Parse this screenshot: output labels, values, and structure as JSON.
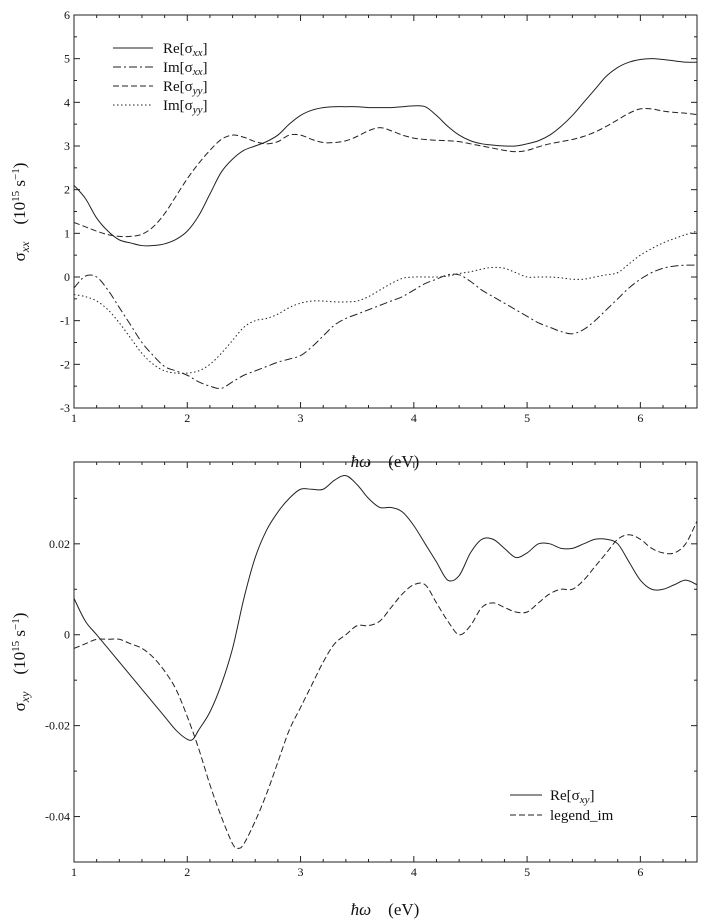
{
  "chart_data": [
    {
      "type": "line",
      "xlabel_parts": [
        "ħω",
        "(eV)"
      ],
      "ylabel_parts": [
        "σ",
        "xx",
        "(10",
        "15",
        " s",
        "−1",
        ")"
      ],
      "xlim": [
        1,
        6.5
      ],
      "ylim": [
        -3,
        6
      ],
      "xticks": [
        1,
        2,
        3,
        4,
        5,
        6
      ],
      "yticks": [
        -3,
        -2,
        -1,
        0,
        1,
        2,
        3,
        4,
        5,
        6
      ],
      "xtick_labels": [
        "1",
        "2",
        "3",
        "4",
        "5",
        "6"
      ],
      "ytick_labels": [
        "-3",
        "-2",
        "-1",
        "0",
        "1",
        "2",
        "3",
        "4",
        "5",
        "6"
      ],
      "grid": false,
      "legend_position": "top-left",
      "series": [
        {
          "name_parts": [
            "Re",
            "σ",
            "xx"
          ],
          "dash": "solid",
          "x": [
            1.0,
            1.1,
            1.2,
            1.3,
            1.4,
            1.5,
            1.6,
            1.7,
            1.8,
            1.9,
            2.0,
            2.1,
            2.2,
            2.3,
            2.4,
            2.5,
            2.6,
            2.7,
            2.8,
            2.9,
            3.0,
            3.1,
            3.2,
            3.3,
            3.4,
            3.5,
            3.6,
            3.7,
            3.8,
            3.9,
            4.0,
            4.1,
            4.2,
            4.3,
            4.4,
            4.5,
            4.6,
            4.7,
            4.8,
            4.9,
            5.0,
            5.1,
            5.2,
            5.3,
            5.4,
            5.5,
            5.6,
            5.7,
            5.8,
            5.9,
            6.0,
            6.1,
            6.2,
            6.3,
            6.4,
            6.5
          ],
          "y": [
            2.1,
            1.8,
            1.35,
            1.05,
            0.85,
            0.78,
            0.72,
            0.72,
            0.76,
            0.86,
            1.05,
            1.4,
            1.9,
            2.4,
            2.7,
            2.9,
            3.0,
            3.1,
            3.25,
            3.5,
            3.7,
            3.82,
            3.88,
            3.9,
            3.9,
            3.9,
            3.88,
            3.88,
            3.88,
            3.9,
            3.92,
            3.9,
            3.7,
            3.45,
            3.25,
            3.12,
            3.05,
            3.02,
            3.0,
            3.0,
            3.05,
            3.12,
            3.25,
            3.45,
            3.7,
            4.0,
            4.3,
            4.6,
            4.8,
            4.92,
            4.98,
            5.0,
            4.98,
            4.95,
            4.92,
            4.92
          ]
        },
        {
          "name_parts": [
            "Im",
            "σ",
            "xx"
          ],
          "dash": "dashdot",
          "x": [
            1.0,
            1.1,
            1.2,
            1.3,
            1.4,
            1.5,
            1.6,
            1.7,
            1.8,
            1.9,
            2.0,
            2.1,
            2.2,
            2.3,
            2.4,
            2.5,
            2.6,
            2.7,
            2.8,
            2.9,
            3.0,
            3.1,
            3.2,
            3.3,
            3.4,
            3.5,
            3.6,
            3.7,
            3.8,
            3.9,
            4.0,
            4.1,
            4.2,
            4.3,
            4.4,
            4.5,
            4.6,
            4.7,
            4.8,
            4.9,
            5.0,
            5.1,
            5.2,
            5.3,
            5.4,
            5.5,
            5.6,
            5.7,
            5.8,
            5.9,
            6.0,
            6.1,
            6.2,
            6.3,
            6.4,
            6.5
          ],
          "y": [
            -0.25,
            0.02,
            0.0,
            -0.3,
            -0.7,
            -1.1,
            -1.5,
            -1.8,
            -2.05,
            -2.15,
            -2.25,
            -2.4,
            -2.5,
            -2.55,
            -2.4,
            -2.25,
            -2.15,
            -2.05,
            -1.95,
            -1.88,
            -1.8,
            -1.6,
            -1.35,
            -1.1,
            -0.95,
            -0.85,
            -0.75,
            -0.65,
            -0.55,
            -0.45,
            -0.3,
            -0.15,
            -0.05,
            0.05,
            0.05,
            -0.1,
            -0.3,
            -0.45,
            -0.6,
            -0.75,
            -0.9,
            -1.05,
            -1.15,
            -1.25,
            -1.3,
            -1.2,
            -1.0,
            -0.75,
            -0.5,
            -0.25,
            -0.05,
            0.1,
            0.2,
            0.25,
            0.27,
            0.27
          ]
        },
        {
          "name_parts": [
            "Re",
            "σ",
            "yy"
          ],
          "dash": "dashed",
          "x": [
            1.0,
            1.1,
            1.2,
            1.3,
            1.4,
            1.5,
            1.6,
            1.7,
            1.8,
            1.9,
            2.0,
            2.1,
            2.2,
            2.3,
            2.4,
            2.5,
            2.6,
            2.7,
            2.8,
            2.9,
            3.0,
            3.1,
            3.2,
            3.3,
            3.4,
            3.5,
            3.6,
            3.7,
            3.8,
            3.9,
            4.0,
            4.1,
            4.2,
            4.3,
            4.4,
            4.5,
            4.6,
            4.7,
            4.8,
            4.9,
            5.0,
            5.1,
            5.2,
            5.3,
            5.4,
            5.5,
            5.6,
            5.7,
            5.8,
            5.9,
            6.0,
            6.1,
            6.2,
            6.3,
            6.4,
            6.5
          ],
          "y": [
            1.25,
            1.15,
            1.05,
            0.97,
            0.93,
            0.93,
            0.98,
            1.15,
            1.45,
            1.85,
            2.25,
            2.6,
            2.9,
            3.15,
            3.25,
            3.2,
            3.1,
            3.05,
            3.1,
            3.25,
            3.25,
            3.15,
            3.08,
            3.08,
            3.12,
            3.22,
            3.35,
            3.42,
            3.35,
            3.25,
            3.18,
            3.15,
            3.13,
            3.12,
            3.1,
            3.05,
            3.0,
            2.95,
            2.9,
            2.87,
            2.9,
            2.98,
            3.05,
            3.1,
            3.15,
            3.22,
            3.32,
            3.45,
            3.6,
            3.75,
            3.85,
            3.85,
            3.8,
            3.77,
            3.75,
            3.72
          ]
        },
        {
          "name_parts": [
            "Im",
            "σ",
            "yy"
          ],
          "dash": "dotted",
          "x": [
            1.0,
            1.1,
            1.2,
            1.3,
            1.4,
            1.5,
            1.6,
            1.7,
            1.8,
            1.9,
            2.0,
            2.1,
            2.2,
            2.3,
            2.4,
            2.5,
            2.6,
            2.7,
            2.8,
            2.9,
            3.0,
            3.1,
            3.2,
            3.3,
            3.4,
            3.5,
            3.6,
            3.7,
            3.8,
            3.9,
            4.0,
            4.1,
            4.2,
            4.3,
            4.4,
            4.5,
            4.6,
            4.7,
            4.8,
            4.9,
            5.0,
            5.1,
            5.2,
            5.3,
            5.4,
            5.5,
            5.6,
            5.7,
            5.8,
            5.9,
            6.0,
            6.1,
            6.2,
            6.3,
            6.4,
            6.5
          ],
          "y": [
            -0.4,
            -0.45,
            -0.55,
            -0.75,
            -1.05,
            -1.4,
            -1.75,
            -2.0,
            -2.15,
            -2.2,
            -2.2,
            -2.15,
            -2.0,
            -1.75,
            -1.45,
            -1.15,
            -1.0,
            -0.95,
            -0.85,
            -0.7,
            -0.6,
            -0.55,
            -0.55,
            -0.57,
            -0.57,
            -0.55,
            -0.45,
            -0.3,
            -0.15,
            -0.03,
            0.0,
            0.0,
            0.0,
            0.02,
            0.08,
            0.12,
            0.18,
            0.22,
            0.2,
            0.1,
            0.0,
            0.0,
            0.0,
            -0.02,
            -0.05,
            -0.05,
            0.0,
            0.05,
            0.1,
            0.3,
            0.5,
            0.65,
            0.78,
            0.88,
            0.97,
            1.05
          ]
        }
      ]
    },
    {
      "type": "line",
      "xlabel_parts": [
        "ħω",
        "(eV)"
      ],
      "ylabel_parts": [
        "σ",
        "xy",
        "(10",
        "15",
        " s",
        "−1",
        ")"
      ],
      "xlim": [
        1,
        6.5
      ],
      "ylim": [
        -0.05,
        0.038
      ],
      "xticks": [
        1,
        2,
        3,
        4,
        5,
        6
      ],
      "yticks": [
        -0.04,
        -0.02,
        0,
        0.02
      ],
      "xtick_labels": [
        "1",
        "2",
        "3",
        "4",
        "5",
        "6"
      ],
      "ytick_labels": [
        "-0.04",
        "-0.02",
        "0",
        "0.02"
      ],
      "grid": false,
      "legend_position": "bottom-right",
      "series": [
        {
          "name_parts": [
            "Re",
            "σ",
            "xy"
          ],
          "dash": "solid",
          "x": [
            1.0,
            1.1,
            1.2,
            1.3,
            1.4,
            1.5,
            1.6,
            1.7,
            1.8,
            1.9,
            2.0,
            2.05,
            2.1,
            2.2,
            2.3,
            2.4,
            2.5,
            2.6,
            2.7,
            2.8,
            2.9,
            3.0,
            3.1,
            3.2,
            3.3,
            3.4,
            3.5,
            3.6,
            3.7,
            3.8,
            3.9,
            4.0,
            4.1,
            4.2,
            4.3,
            4.4,
            4.5,
            4.6,
            4.7,
            4.8,
            4.9,
            5.0,
            5.1,
            5.2,
            5.3,
            5.4,
            5.5,
            5.6,
            5.7,
            5.8,
            5.9,
            6.0,
            6.1,
            6.2,
            6.3,
            6.4,
            6.5
          ],
          "y": [
            0.008,
            0.003,
            0.0,
            -0.003,
            -0.006,
            -0.009,
            -0.012,
            -0.015,
            -0.018,
            -0.021,
            -0.023,
            -0.023,
            -0.021,
            -0.017,
            -0.011,
            -0.003,
            0.008,
            0.017,
            0.023,
            0.027,
            0.03,
            0.032,
            0.032,
            0.032,
            0.034,
            0.035,
            0.033,
            0.03,
            0.028,
            0.028,
            0.027,
            0.024,
            0.02,
            0.016,
            0.012,
            0.013,
            0.018,
            0.021,
            0.021,
            0.019,
            0.017,
            0.018,
            0.02,
            0.02,
            0.019,
            0.019,
            0.02,
            0.021,
            0.021,
            0.02,
            0.016,
            0.012,
            0.01,
            0.01,
            0.011,
            0.012,
            0.011
          ]
        },
        {
          "name": "legend_im",
          "dash": "dashed",
          "x": [
            1.0,
            1.1,
            1.2,
            1.3,
            1.4,
            1.5,
            1.6,
            1.7,
            1.8,
            1.9,
            2.0,
            2.1,
            2.2,
            2.3,
            2.4,
            2.45,
            2.5,
            2.6,
            2.7,
            2.8,
            2.9,
            3.0,
            3.1,
            3.2,
            3.3,
            3.4,
            3.5,
            3.6,
            3.7,
            3.8,
            3.9,
            4.0,
            4.1,
            4.2,
            4.3,
            4.4,
            4.5,
            4.6,
            4.7,
            4.8,
            4.9,
            5.0,
            5.1,
            5.2,
            5.3,
            5.4,
            5.5,
            5.6,
            5.7,
            5.8,
            5.9,
            6.0,
            6.1,
            6.2,
            6.3,
            6.4,
            6.5
          ],
          "y": [
            -0.003,
            -0.002,
            -0.001,
            -0.001,
            -0.001,
            -0.002,
            -0.003,
            -0.005,
            -0.008,
            -0.012,
            -0.018,
            -0.025,
            -0.033,
            -0.04,
            -0.046,
            -0.047,
            -0.046,
            -0.041,
            -0.035,
            -0.028,
            -0.021,
            -0.016,
            -0.011,
            -0.006,
            -0.002,
            0.0,
            0.002,
            0.002,
            0.003,
            0.006,
            0.009,
            0.011,
            0.011,
            0.007,
            0.003,
            0.0,
            0.002,
            0.006,
            0.007,
            0.006,
            0.005,
            0.005,
            0.007,
            0.009,
            0.01,
            0.01,
            0.012,
            0.015,
            0.018,
            0.021,
            0.022,
            0.021,
            0.019,
            0.018,
            0.018,
            0.02,
            0.025
          ]
        }
      ]
    }
  ]
}
